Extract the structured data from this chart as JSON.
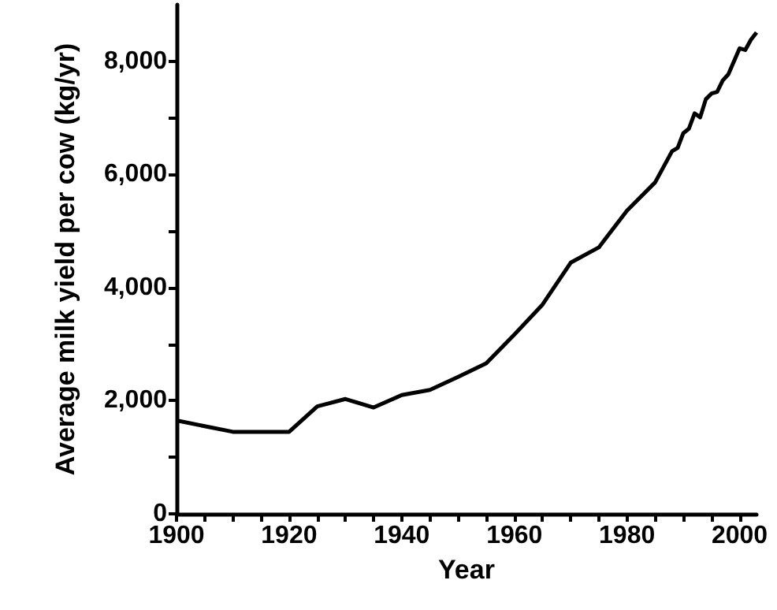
{
  "chart_data": {
    "type": "line",
    "xlabel": "Year",
    "ylabel": "Average milk yield per cow (kg/yr)",
    "x": [
      1900,
      1910,
      1920,
      1925,
      1930,
      1935,
      1940,
      1945,
      1950,
      1955,
      1960,
      1965,
      1970,
      1975,
      1980,
      1985,
      1988,
      1989,
      1990,
      1991,
      1992,
      1993,
      1994,
      1995,
      1996,
      1997,
      1998,
      2000,
      2001,
      2002,
      2003
    ],
    "values": [
      1650,
      1450,
      1450,
      1900,
      2030,
      1880,
      2100,
      2190,
      2420,
      2660,
      3170,
      3700,
      4440,
      4710,
      5360,
      5860,
      6410,
      6470,
      6730,
      6810,
      7080,
      7010,
      7330,
      7430,
      7460,
      7660,
      7770,
      8230,
      8200,
      8380,
      8510
    ],
    "color": "#000000",
    "xlim": [
      1900,
      2003
    ],
    "xticks": [
      1900,
      {
        "value": 1905,
        "label": null
      },
      {
        "value": 1910,
        "label": null
      },
      {
        "value": 1915,
        "label": null
      },
      1920,
      {
        "value": 1925,
        "label": null
      },
      {
        "value": 1930,
        "label": null
      },
      {
        "value": 1935,
        "label": null
      },
      1940,
      {
        "value": 1945,
        "label": null
      },
      {
        "value": 1950,
        "label": null
      },
      {
        "value": 1955,
        "label": null
      },
      1960,
      {
        "value": 1965,
        "label": null
      },
      {
        "value": 1970,
        "label": null
      },
      {
        "value": 1975,
        "label": null
      },
      1980,
      {
        "value": 1985,
        "label": null
      },
      {
        "value": 1990,
        "label": null
      },
      {
        "value": 1995,
        "label": null
      },
      2000
    ],
    "ylim": [
      0,
      9000
    ],
    "yticks": [
      {
        "value": 0,
        "label": "0"
      },
      {
        "value": 1000,
        "label": null
      },
      {
        "value": 2000,
        "label": "2,000"
      },
      {
        "value": 3000,
        "label": null
      },
      {
        "value": 4000,
        "label": "4,000"
      },
      {
        "value": 5000,
        "label": null
      },
      {
        "value": 6000,
        "label": "6,000"
      },
      {
        "value": 7000,
        "label": null
      },
      {
        "value": 8000,
        "label": "8,000"
      }
    ],
    "grid": false,
    "marker": "none",
    "line_style": "solid"
  }
}
